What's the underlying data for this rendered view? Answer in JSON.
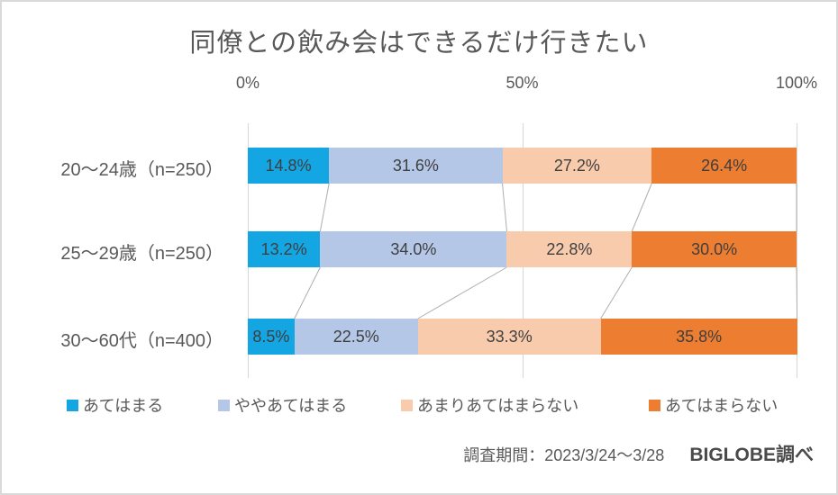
{
  "title": "同僚との飲み会はできるだけ行きたい",
  "chart_data": {
    "type": "bar",
    "variant": "horizontal-stacked-100",
    "title": "同僚との飲み会はできるだけ行きたい",
    "categories": [
      "20〜24歳（n=250）",
      "25〜29歳（n=250）",
      "30〜60代（n=400）"
    ],
    "series": [
      {
        "name": "あてはまる",
        "color": "#14a5e3",
        "values": [
          14.8,
          13.2,
          8.5
        ]
      },
      {
        "name": "ややあてはまる",
        "color": "#b4c7e7",
        "values": [
          31.6,
          34.0,
          22.5
        ]
      },
      {
        "name": "あまりあてはまらない",
        "color": "#f8cbad",
        "values": [
          27.2,
          22.8,
          33.3
        ]
      },
      {
        "name": "あてはまらない",
        "color": "#ed7d31",
        "values": [
          26.4,
          30.0,
          35.8
        ]
      }
    ],
    "x_axis": {
      "ticks": [
        "0%",
        "50%",
        "100%"
      ],
      "tick_values": [
        0,
        50,
        100
      ],
      "range": [
        0,
        100
      ]
    },
    "value_suffix": "%",
    "grid": "vertical-only",
    "legend_position": "bottom",
    "connector_line_color": "#aeaeae"
  },
  "footer": {
    "survey_period": "調査期間：2023/3/24〜3/28",
    "source": "BIGLOBE調べ"
  }
}
